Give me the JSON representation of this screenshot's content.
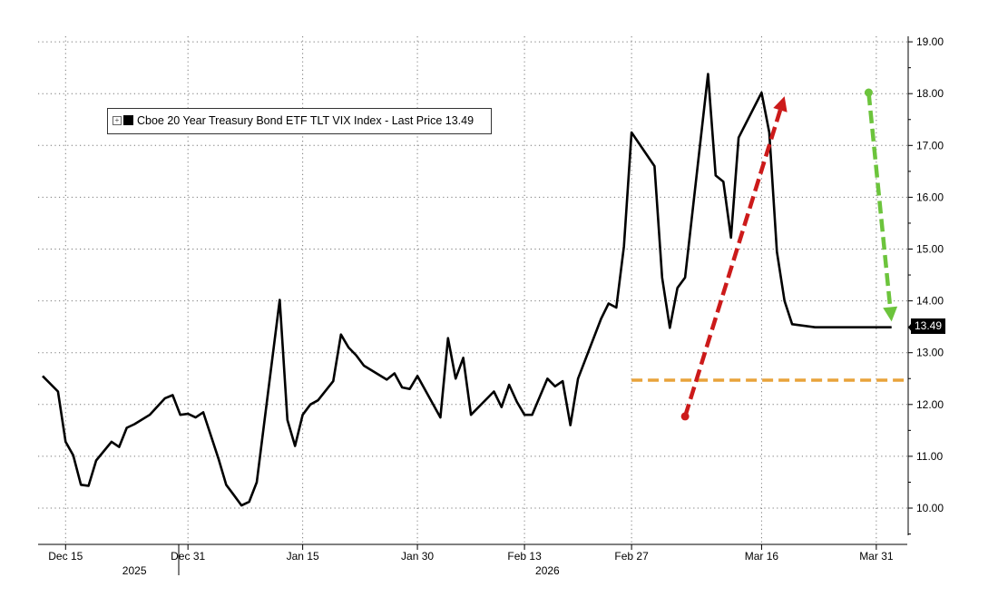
{
  "chart_data": {
    "type": "line",
    "title": "",
    "xlabel": "",
    "ylabel": "",
    "ylim": [
      9.4,
      19.1
    ],
    "y_ticks": [
      10,
      11,
      12,
      13,
      14,
      15,
      16,
      17,
      18,
      19
    ],
    "y_tick_labels": [
      "10.00",
      "11.00",
      "12.00",
      "13.00",
      "14.00",
      "15.00",
      "16.00",
      "17.00",
      "18.00",
      "19.00"
    ],
    "x_ticks": [
      {
        "date": "2025-12-15",
        "label": "Dec 15"
      },
      {
        "date": "2025-12-31",
        "label": "Dec 31"
      },
      {
        "date": "2026-01-15",
        "label": "Jan 15"
      },
      {
        "date": "2026-01-30",
        "label": "Jan 30"
      },
      {
        "date": "2026-02-13",
        "label": "Feb 13"
      },
      {
        "date": "2026-02-27",
        "label": "Feb 27"
      },
      {
        "date": "2026-03-16",
        "label": "Mar 16"
      },
      {
        "date": "2026-03-31",
        "label": "Mar 31"
      }
    ],
    "year_labels": [
      {
        "date": "2025-12-24",
        "label": "2025"
      },
      {
        "date": "2026-02-16",
        "label": "2026"
      }
    ],
    "grid": true,
    "legend_position": "top-left",
    "series": [
      {
        "name": "Cboe 20 Year Treasury Bond ETF TLT VIX Index - Last Price 13.49",
        "color": "#000000",
        "x": [
          "2025-12-12",
          "2025-12-14",
          "2025-12-15",
          "2025-12-16",
          "2025-12-17",
          "2025-12-18",
          "2025-12-19",
          "2025-12-21",
          "2025-12-22",
          "2025-12-23",
          "2025-12-24",
          "2025-12-26",
          "2025-12-28",
          "2025-12-29",
          "2025-12-30",
          "2025-12-31",
          "2026-01-01",
          "2026-01-02",
          "2026-01-04",
          "2026-01-05",
          "2026-01-06",
          "2026-01-07",
          "2026-01-08",
          "2026-01-09",
          "2026-01-12",
          "2026-01-13",
          "2026-01-14",
          "2026-01-15",
          "2026-01-16",
          "2026-01-17",
          "2026-01-19",
          "2026-01-20",
          "2026-01-21",
          "2026-01-22",
          "2026-01-23",
          "2026-01-26",
          "2026-01-27",
          "2026-01-28",
          "2026-01-29",
          "2026-01-30",
          "2026-02-02",
          "2026-02-03",
          "2026-02-04",
          "2026-02-05",
          "2026-02-06",
          "2026-02-09",
          "2026-02-10",
          "2026-02-11",
          "2026-02-12",
          "2026-02-13",
          "2026-02-14",
          "2026-02-16",
          "2026-02-17",
          "2026-02-18",
          "2026-02-19",
          "2026-02-20",
          "2026-02-23",
          "2026-02-24",
          "2026-02-25",
          "2026-02-26",
          "2026-02-27",
          "2026-03-02",
          "2026-03-03",
          "2026-03-04",
          "2026-03-05",
          "2026-03-06",
          "2026-03-09",
          "2026-03-10",
          "2026-03-11",
          "2026-03-12",
          "2026-03-13",
          "2026-03-16",
          "2026-03-17",
          "2026-03-18",
          "2026-03-19",
          "2026-03-20",
          "2026-03-23",
          "2026-03-24",
          "2026-03-25",
          "2026-03-26",
          "2026-03-27",
          "2026-03-30",
          "2026-03-31",
          "2026-04-01",
          "2026-04-02"
        ],
        "values": [
          12.55,
          12.25,
          11.28,
          11.02,
          10.45,
          10.43,
          10.92,
          11.28,
          11.18,
          11.55,
          11.62,
          11.8,
          12.12,
          12.18,
          11.8,
          11.82,
          11.75,
          11.85,
          10.95,
          10.45,
          10.25,
          10.05,
          10.12,
          10.5,
          14.02,
          11.7,
          11.2,
          11.8,
          12.0,
          12.08,
          12.45,
          13.35,
          13.1,
          12.95,
          12.75,
          12.48,
          12.6,
          12.33,
          12.3,
          12.55,
          11.75,
          13.28,
          12.5,
          12.9,
          11.8,
          12.25,
          11.95,
          12.38,
          12.05,
          11.8,
          11.8,
          12.5,
          12.35,
          12.45,
          11.6,
          12.5,
          13.65,
          13.95,
          13.87,
          15.05,
          17.25,
          16.6,
          14.45,
          13.48,
          14.25,
          14.45,
          18.38,
          16.42,
          16.3,
          15.22,
          17.15,
          18.02,
          17.25,
          14.95,
          14.0,
          13.55,
          13.49,
          13.49,
          13.49,
          13.49,
          13.49,
          13.49,
          13.49,
          13.49,
          13.49
        ]
      }
    ],
    "last_price": "13.49",
    "annotations": [
      {
        "kind": "horizontal-dashed-line",
        "color": "#e8a33a",
        "y": 12.47,
        "x_from": "2026-02-27",
        "x_to": "2026-04-04"
      },
      {
        "kind": "arrow-up",
        "color": "#cc1a1a",
        "from": {
          "x": "2026-03-06",
          "y": 11.77
        },
        "to": {
          "x": "2026-03-19",
          "y": 17.95
        }
      },
      {
        "kind": "arrow-down",
        "color": "#6cc43c",
        "from": {
          "x": "2026-03-30",
          "y": 18.02
        },
        "to": {
          "x": "2026-04-02",
          "y": 13.6
        }
      }
    ]
  }
}
